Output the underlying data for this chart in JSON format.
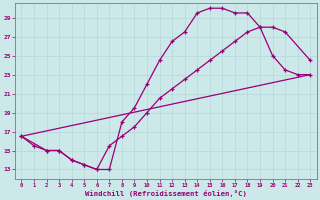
{
  "xlabel": "Windchill (Refroidissement éolien,°C)",
  "bg_color": "#cce8e8",
  "grid_color": "#aad4d4",
  "line_color": "#990077",
  "marker": "+",
  "markersize": 3,
  "linewidth": 0.9,
  "xlim": [
    -0.5,
    23.5
  ],
  "ylim": [
    12,
    30.5
  ],
  "xticks": [
    0,
    1,
    2,
    3,
    4,
    5,
    6,
    7,
    8,
    9,
    10,
    11,
    12,
    13,
    14,
    15,
    16,
    17,
    18,
    19,
    20,
    21,
    22,
    23
  ],
  "yticks": [
    13,
    15,
    17,
    19,
    21,
    23,
    25,
    27,
    29
  ],
  "line1_x": [
    0,
    1,
    2,
    3,
    4,
    5,
    6,
    7,
    8,
    9,
    10,
    11,
    12,
    13,
    14,
    15,
    16,
    17,
    18,
    19,
    20,
    21,
    22,
    23
  ],
  "line1_y": [
    16.5,
    15.5,
    15.0,
    15.0,
    14.0,
    13.5,
    13.0,
    13.0,
    18.0,
    19.5,
    22.0,
    24.5,
    26.5,
    27.5,
    29.5,
    30.0,
    30.0,
    29.5,
    29.5,
    28.0,
    25.0,
    23.5,
    23.0,
    23.0
  ],
  "line2_x": [
    0,
    2,
    3,
    4,
    5,
    6,
    7,
    8,
    9,
    10,
    11,
    12,
    13,
    14,
    15,
    16,
    17,
    18,
    19,
    20,
    21,
    23
  ],
  "line2_y": [
    16.5,
    15.0,
    15.0,
    14.0,
    13.5,
    13.0,
    15.5,
    16.5,
    17.5,
    19.0,
    20.5,
    21.5,
    22.5,
    23.5,
    24.5,
    25.5,
    26.5,
    27.5,
    28.0,
    28.0,
    27.5,
    24.5
  ],
  "line3_x": [
    0,
    23
  ],
  "line3_y": [
    16.5,
    23.0
  ]
}
